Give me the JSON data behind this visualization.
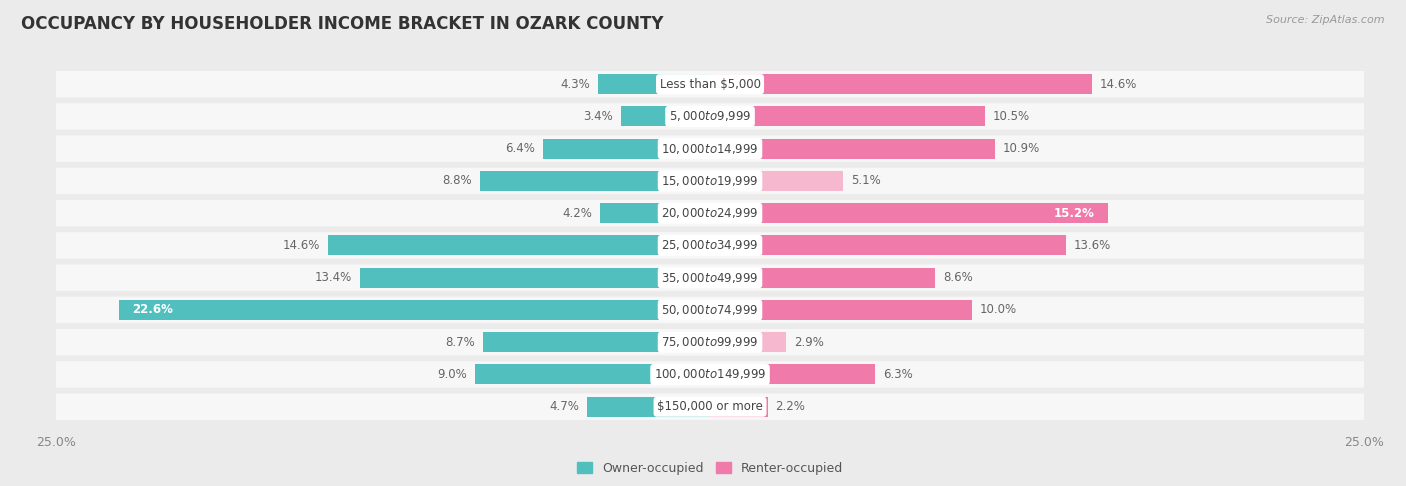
{
  "title": "OCCUPANCY BY HOUSEHOLDER INCOME BRACKET IN OZARK COUNTY",
  "source": "Source: ZipAtlas.com",
  "categories": [
    "Less than $5,000",
    "$5,000 to $9,999",
    "$10,000 to $14,999",
    "$15,000 to $19,999",
    "$20,000 to $24,999",
    "$25,000 to $34,999",
    "$35,000 to $49,999",
    "$50,000 to $74,999",
    "$75,000 to $99,999",
    "$100,000 to $149,999",
    "$150,000 or more"
  ],
  "owner_values": [
    4.3,
    3.4,
    6.4,
    8.8,
    4.2,
    14.6,
    13.4,
    22.6,
    8.7,
    9.0,
    4.7
  ],
  "renter_values": [
    14.6,
    10.5,
    10.9,
    5.1,
    15.2,
    13.6,
    8.6,
    10.0,
    2.9,
    6.3,
    2.2
  ],
  "owner_color": "#52bfbf",
  "renter_color": "#f07aaa",
  "renter_color_light": "#f5b8cf",
  "background_color": "#ebebeb",
  "bar_background": "#f7f7f7",
  "axis_limit": 25.0,
  "bar_height": 0.62,
  "title_fontsize": 12,
  "label_fontsize": 8.5,
  "value_fontsize": 8.5,
  "tick_fontsize": 9,
  "legend_fontsize": 9,
  "source_fontsize": 8,
  "renter_light_indices": [
    3,
    8
  ],
  "owner_label_inside_indices": [
    7
  ],
  "renter_label_inside_indices": [
    4
  ]
}
